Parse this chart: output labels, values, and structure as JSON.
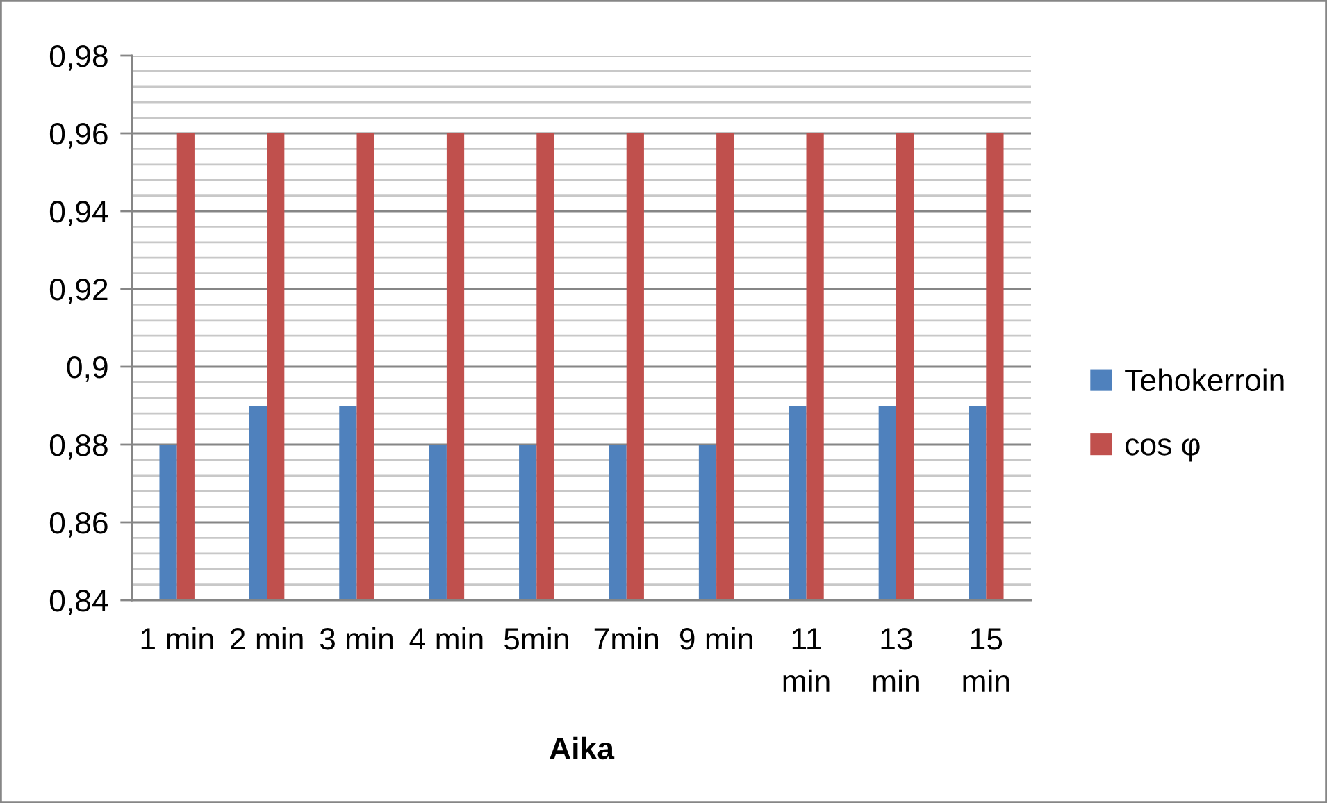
{
  "chart_data": {
    "type": "bar",
    "xlabel": "Aika",
    "categories": [
      "1 min",
      "2 min",
      "3 min",
      "4 min",
      "5min",
      "7min",
      "9 min",
      "11 min",
      "13 min",
      "15 min"
    ],
    "series": [
      {
        "name": "Tehokerroin",
        "color": "#4f81bd",
        "values": [
          0.88,
          0.89,
          0.89,
          0.88,
          0.88,
          0.88,
          0.88,
          0.89,
          0.89,
          0.89
        ]
      },
      {
        "name": "cos φ",
        "color": "#c0504d",
        "values": [
          0.96,
          0.96,
          0.96,
          0.96,
          0.96,
          0.96,
          0.96,
          0.96,
          0.96,
          0.96
        ]
      }
    ],
    "ylim": [
      0.84,
      0.98
    ],
    "yticks": [
      {
        "value": 0.84,
        "label": "0,84"
      },
      {
        "value": 0.844,
        "label": null
      },
      {
        "value": 0.848,
        "label": null
      },
      {
        "value": 0.852,
        "label": null
      },
      {
        "value": 0.856,
        "label": null
      },
      {
        "value": 0.86,
        "label": "0,86"
      },
      {
        "value": 0.864,
        "label": null
      },
      {
        "value": 0.868,
        "label": null
      },
      {
        "value": 0.872,
        "label": null
      },
      {
        "value": 0.876,
        "label": null
      },
      {
        "value": 0.88,
        "label": "0,88"
      },
      {
        "value": 0.884,
        "label": null
      },
      {
        "value": 0.888,
        "label": null
      },
      {
        "value": 0.892,
        "label": null
      },
      {
        "value": 0.896,
        "label": null
      },
      {
        "value": 0.9,
        "label": "0,9"
      },
      {
        "value": 0.904,
        "label": null
      },
      {
        "value": 0.908,
        "label": null
      },
      {
        "value": 0.912,
        "label": null
      },
      {
        "value": 0.916,
        "label": null
      },
      {
        "value": 0.92,
        "label": "0,92"
      },
      {
        "value": 0.924,
        "label": null
      },
      {
        "value": 0.928,
        "label": null
      },
      {
        "value": 0.932,
        "label": null
      },
      {
        "value": 0.936,
        "label": null
      },
      {
        "value": 0.94,
        "label": "0,94"
      },
      {
        "value": 0.944,
        "label": null
      },
      {
        "value": 0.948,
        "label": null
      },
      {
        "value": 0.952,
        "label": null
      },
      {
        "value": 0.956,
        "label": null
      },
      {
        "value": 0.96,
        "label": "0,96"
      },
      {
        "value": 0.964,
        "label": null
      },
      {
        "value": 0.968,
        "label": null
      },
      {
        "value": 0.972,
        "label": null
      },
      {
        "value": 0.976,
        "label": null
      },
      {
        "value": 0.98,
        "label": "0,98"
      }
    ],
    "grid": "y",
    "legend": "right"
  }
}
